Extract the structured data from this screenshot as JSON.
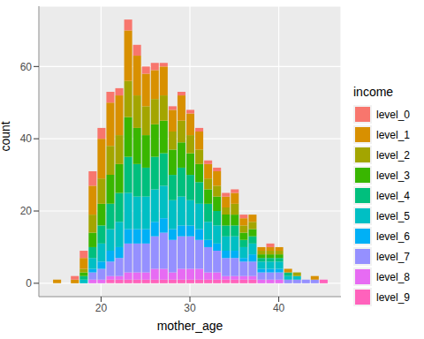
{
  "chart_data": {
    "type": "histogram",
    "x_label": "mother_age",
    "y_label": "count",
    "legend_title": "income",
    "bins": [
      14.5,
      15.5,
      16.5,
      17.5,
      18.5,
      19.5,
      20.5,
      21.5,
      22.5,
      23.5,
      24.5,
      25.5,
      26.5,
      27.5,
      28.5,
      29.5,
      30.5,
      31.5,
      32.5,
      33.5,
      34.5,
      35.5,
      36.5,
      37.5,
      38.5,
      39.5,
      40.5,
      41.5,
      42.5,
      43.5,
      44.5,
      45.5
    ],
    "series": [
      {
        "name": "level_0",
        "color": "#F8766D",
        "values": [
          0,
          0,
          1,
          2,
          4,
          3,
          3,
          2,
          3,
          3,
          2,
          2,
          1,
          1,
          1,
          1,
          1,
          1,
          1,
          1,
          1,
          1,
          0,
          0,
          1,
          0,
          0,
          0,
          0,
          0,
          0
        ]
      },
      {
        "name": "level_1",
        "color": "#D89000",
        "values": [
          1,
          0,
          1,
          3,
          8,
          11,
          12,
          11,
          14,
          11,
          9,
          8,
          8,
          6,
          7,
          6,
          5,
          4,
          4,
          3,
          3,
          2,
          2,
          1,
          1,
          1,
          1,
          0,
          0,
          1,
          0
        ]
      },
      {
        "name": "level_2",
        "color": "#A3A500",
        "values": [
          0,
          0,
          0,
          1,
          5,
          7,
          8,
          8,
          10,
          9,
          8,
          7,
          7,
          5,
          6,
          5,
          4,
          3,
          3,
          2,
          3,
          2,
          2,
          1,
          1,
          1,
          0,
          1,
          0,
          0,
          0
        ]
      },
      {
        "name": "level_3",
        "color": "#39B600",
        "values": [
          0,
          0,
          0,
          1,
          4,
          6,
          8,
          8,
          11,
          10,
          9,
          9,
          9,
          7,
          7,
          6,
          5,
          4,
          4,
          3,
          3,
          2,
          2,
          1,
          1,
          1,
          0,
          0,
          0,
          0,
          0
        ]
      },
      {
        "name": "level_4",
        "color": "#00BF7D",
        "values": [
          0,
          0,
          0,
          1,
          3,
          5,
          7,
          8,
          10,
          9,
          8,
          9,
          9,
          7,
          8,
          7,
          6,
          5,
          4,
          3,
          3,
          2,
          2,
          1,
          1,
          1,
          1,
          0,
          0,
          0,
          0
        ]
      },
      {
        "name": "level_5",
        "color": "#00BFC4",
        "values": [
          0,
          0,
          0,
          1,
          3,
          5,
          6,
          7,
          10,
          9,
          9,
          9,
          9,
          8,
          8,
          7,
          7,
          5,
          5,
          4,
          4,
          3,
          3,
          2,
          2,
          2,
          1,
          1,
          0,
          0,
          0
        ]
      },
      {
        "name": "level_6",
        "color": "#00B0F6",
        "values": [
          0,
          0,
          0,
          0,
          1,
          2,
          3,
          3,
          4,
          4,
          4,
          4,
          4,
          3,
          3,
          3,
          3,
          2,
          2,
          2,
          2,
          1,
          2,
          1,
          1,
          1,
          0,
          0,
          0,
          0,
          0
        ]
      },
      {
        "name": "level_7",
        "color": "#9590FF",
        "values": [
          0,
          0,
          0,
          0,
          2,
          3,
          4,
          5,
          8,
          8,
          8,
          9,
          10,
          9,
          9,
          9,
          8,
          7,
          6,
          5,
          5,
          4,
          4,
          2,
          2,
          2,
          1,
          1,
          1,
          1,
          0
        ]
      },
      {
        "name": "level_8",
        "color": "#E76BF3",
        "values": [
          0,
          0,
          0,
          0,
          1,
          1,
          1,
          1,
          2,
          2,
          2,
          3,
          3,
          2,
          3,
          3,
          3,
          2,
          2,
          1,
          1,
          1,
          1,
          1,
          1,
          1,
          0,
          0,
          0,
          0,
          0
        ]
      },
      {
        "name": "level_9",
        "color": "#FF62BC",
        "values": [
          0,
          0,
          0,
          0,
          0,
          0,
          1,
          1,
          1,
          1,
          1,
          1,
          1,
          1,
          1,
          1,
          1,
          1,
          1,
          1,
          1,
          1,
          1,
          0,
          0,
          0,
          0,
          0,
          0,
          0,
          1
        ]
      }
    ],
    "xlim": [
      13,
      47
    ],
    "xticks": [
      20,
      30,
      40
    ],
    "ylim": [
      -3.7,
      76.7
    ],
    "yticks": [
      0,
      20,
      40,
      60
    ],
    "stacked": true,
    "grid": true,
    "legend": "right"
  }
}
